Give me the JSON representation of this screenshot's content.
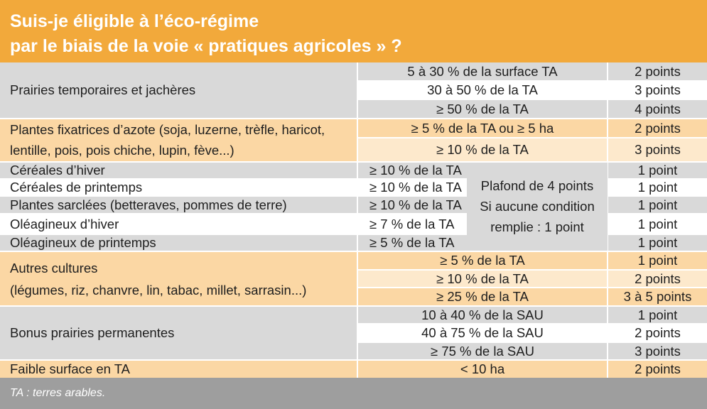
{
  "title": {
    "line1": "Suis-je éligible à l’éco-régime",
    "line2": "par le biais de la voie « pratiques agricoles » ?"
  },
  "rows": {
    "prairies_temp": {
      "label": "Prairies temporaires et jachères",
      "conds": [
        "5 à 30 % de la surface TA",
        "30 à 50 % de la TA",
        "≥ 50 % de la TA"
      ],
      "points": [
        "2 points",
        "3 points",
        "4 points"
      ]
    },
    "fixatrices": {
      "label_line1": "Plantes fixatrices d’azote (soja, luzerne, trèfle, haricot,",
      "label_line2": "lentille, pois, pois chiche, lupin, fève...)",
      "conds": [
        "≥ 5 % de la TA ou ≥ 5 ha",
        "≥ 10 % de la TA"
      ],
      "points": [
        "2 points",
        "3 points"
      ]
    },
    "cereales_hiver": {
      "label": "Céréales d’hiver",
      "cond": "≥ 10 % de la TA",
      "points": "1 point"
    },
    "cereales_printemps": {
      "label": "Céréales de printemps",
      "cond": "≥ 10 % de la TA",
      "points": "1 point"
    },
    "sarclees": {
      "label": "Plantes sarclées (betteraves, pommes de terre)",
      "cond": "≥ 10 % de la TA",
      "points": "1 point"
    },
    "oleagineux_hiver": {
      "label": "Oléagineux d’hiver",
      "cond": "≥ 7 % de la TA",
      "points": "1 point"
    },
    "oleagineux_printemps": {
      "label": "Oléagineux de printemps",
      "cond": "≥ 5 % de la TA",
      "points": "1 point"
    },
    "plafond": {
      "line1": "Plafond de 4 points",
      "line2": "Si aucune condition",
      "line3": "remplie : 1 point"
    },
    "autres": {
      "label_line1": "Autres cultures",
      "label_line2": "(légumes, riz, chanvre, lin, tabac, millet, sarrasin...)",
      "conds": [
        "≥ 5 % de la TA",
        "≥ 10 % de la TA",
        "≥ 25 % de la TA"
      ],
      "points": [
        "1 point",
        "2 points",
        "3 à 5 points"
      ]
    },
    "bonus": {
      "label": "Bonus prairies permanentes",
      "conds": [
        "10 à 40 % de la SAU",
        "40 à 75 % de la SAU",
        "≥ 75 % de la SAU"
      ],
      "points": [
        "1 point",
        "2 points",
        "3 points"
      ]
    },
    "faible": {
      "label": "Faible surface en TA",
      "cond": "< 10 ha",
      "points": "2 points"
    }
  },
  "footnote": "TA : terres arables.",
  "colors": {
    "header": "#f2a93b",
    "gray": "#d9d9d9",
    "peach": "#fbd7a4",
    "cream": "#fde9cc",
    "footer": "#9e9e9e"
  }
}
